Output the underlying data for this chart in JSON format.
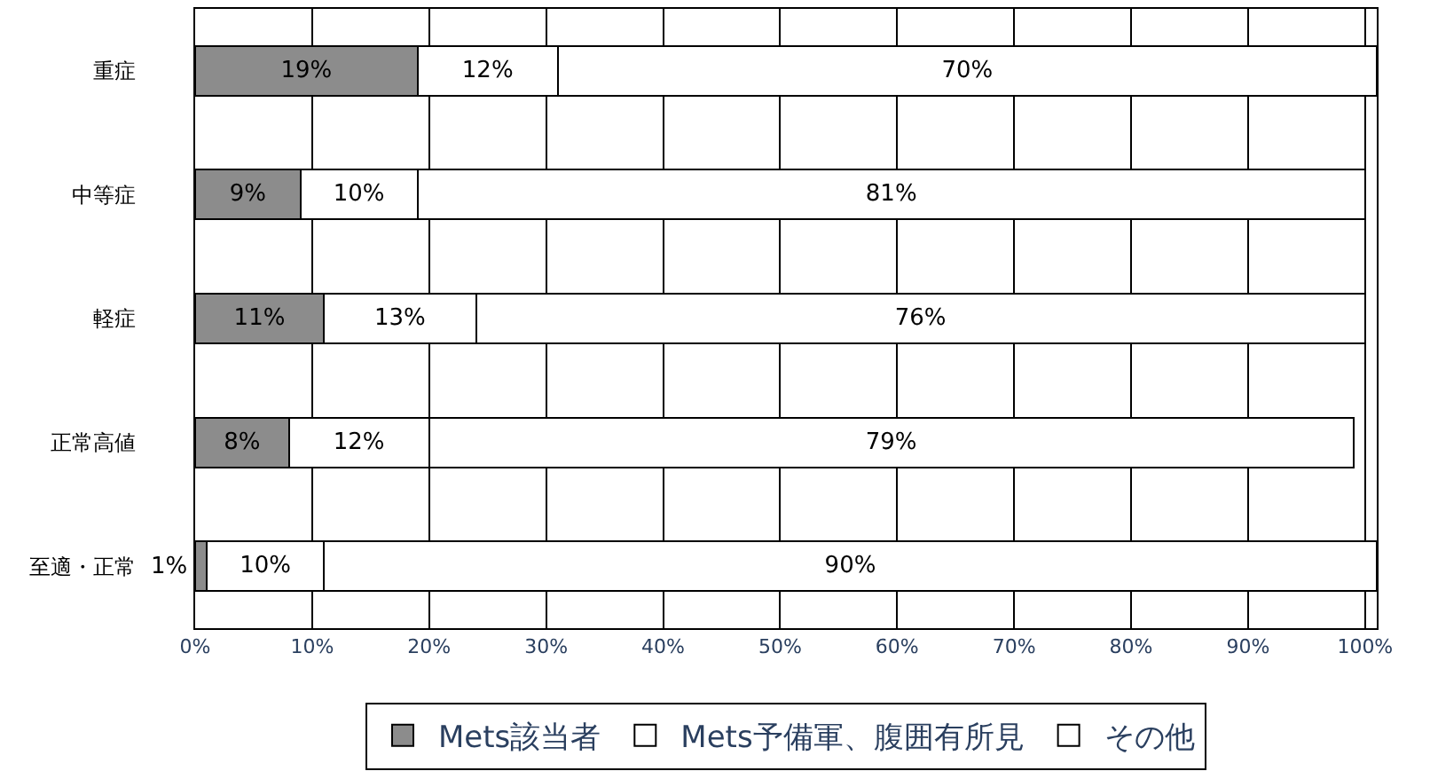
{
  "chart_data": {
    "type": "bar",
    "orientation": "horizontal",
    "stacked": true,
    "categories": [
      "重症",
      "中等症",
      "軽症",
      "正常高値",
      "至適・正常"
    ],
    "series": [
      {
        "name": "Mets該当者",
        "color": "#8c8c8c",
        "values": [
          19,
          9,
          11,
          8,
          1
        ],
        "value_labels": [
          "19%",
          "9%",
          "11%",
          "8%",
          "1%"
        ]
      },
      {
        "name": "Mets予備軍、腹囲有所見",
        "color": "#ffffff",
        "values": [
          12,
          10,
          13,
          12,
          10
        ],
        "value_labels": [
          "12%",
          "10%",
          "13%",
          "12%",
          "10%"
        ]
      },
      {
        "name": "その他",
        "color": "#ffffff",
        "values": [
          70,
          81,
          76,
          79,
          90
        ],
        "value_labels": [
          "70%",
          "81%",
          "76%",
          "79%",
          "90%"
        ]
      }
    ],
    "xlim": [
      0,
      101
    ],
    "xticks": [
      {
        "value": 0,
        "label": "0%"
      },
      {
        "value": 10,
        "label": "10%"
      },
      {
        "value": 20,
        "label": "20%"
      },
      {
        "value": 30,
        "label": "30%"
      },
      {
        "value": 40,
        "label": "40%"
      },
      {
        "value": 50,
        "label": "50%"
      },
      {
        "value": 60,
        "label": "60%"
      },
      {
        "value": 70,
        "label": "70%"
      },
      {
        "value": 80,
        "label": "80%"
      },
      {
        "value": 90,
        "label": "90%"
      },
      {
        "value": 100,
        "label": "100%"
      }
    ],
    "grid": "x",
    "legend": "bottom"
  }
}
